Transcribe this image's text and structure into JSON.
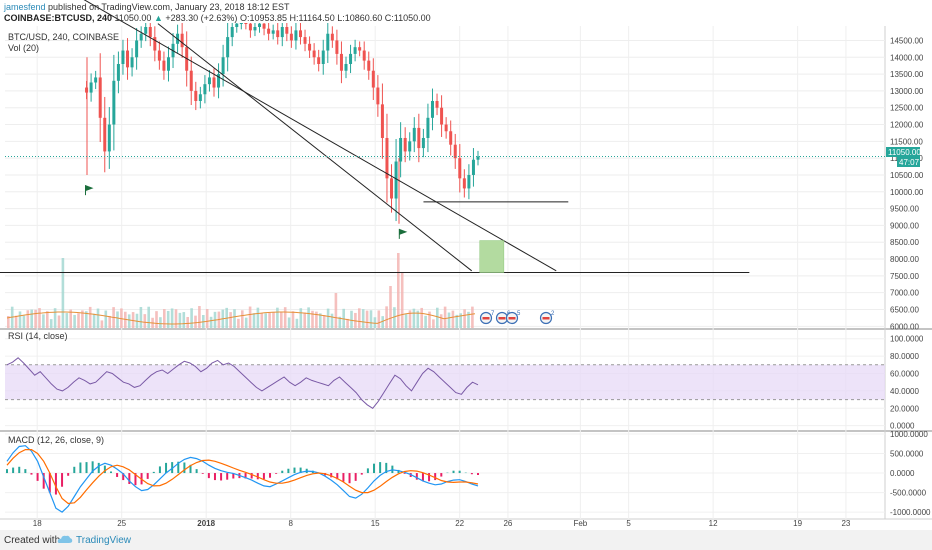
{
  "header": {
    "user": "jamesfend",
    "published": "published on TradingView.com, January 23, 2018 18:12 EST",
    "symbol": "COINBASE:BTCUSD, 240",
    "price": "11050.00",
    "change": "+283.30 (+2.63%)",
    "ohlc": "O:10953.85 H:11164.50 L:10860.60 C:11050.00"
  },
  "footer": {
    "created": "Created with",
    "brand": "TradingView"
  },
  "chart_data": [
    {
      "type": "candlestick",
      "pane": "price",
      "title": "BTC/USD, 240, COINBASE",
      "ylim": [
        5950,
        14900
      ],
      "y_ticks": [
        14500,
        14000,
        13500,
        13000,
        12500,
        12000,
        11500,
        11000,
        10500,
        10000,
        9500,
        9000,
        8500,
        8000,
        7500,
        7000,
        6500,
        6000
      ],
      "x_ticks": [
        "18",
        "25",
        "2018",
        "8",
        "15",
        "22",
        "26",
        "Feb",
        "5",
        "12",
        "19",
        "23"
      ],
      "last_price_label": "11050.00",
      "countdown_label": "47:07",
      "close_path": [
        13100,
        12950,
        13250,
        13400,
        12200,
        11200,
        12000,
        13300,
        13800,
        14200,
        13700,
        14000,
        14500,
        14700,
        14900,
        14600,
        14200,
        13900,
        13600,
        14000,
        14400,
        14700,
        14300,
        13600,
        13000,
        12700,
        12900,
        13200,
        13400,
        13100,
        13500,
        14000,
        14600,
        14900,
        15000,
        15100,
        15000,
        14800,
        14900,
        15000,
        14850,
        14700,
        14800,
        14600,
        14900,
        14700,
        14500,
        14800,
        14600,
        14400,
        14200,
        14000,
        13800,
        14200,
        14700,
        14500,
        14100,
        13600,
        13800,
        14100,
        14300,
        14200,
        13900,
        13600,
        13100,
        12600,
        11600,
        10400,
        9800,
        10900,
        11600,
        11200,
        11500,
        11900,
        11300,
        11600,
        12200,
        12700,
        12500,
        12000,
        11800,
        11400,
        11000,
        10400,
        10100,
        10500,
        10953.85,
        11050
      ],
      "volume": {
        "label": "Vol (20)"
      },
      "annotations": {
        "channel_upper": {
          "from": [
            "2017-12-20",
            16100
          ],
          "to": [
            "2018-01-30",
            7650
          ]
        },
        "channel_lower": {
          "from": [
            "2017-12-28",
            15000
          ],
          "to": [
            "2018-01-23",
            7650
          ]
        },
        "support_long": {
          "from": [
            "2017-12-13",
            7600
          ],
          "to": [
            "2018-02-15",
            7600
          ]
        },
        "support_short": {
          "from": [
            "2018-01-19",
            9700
          ],
          "to": [
            "2018-01-31",
            9700
          ]
        },
        "target_box": {
          "x": [
            "2018-01-23",
            "2018-01-25"
          ],
          "y": [
            7600,
            8550
          ]
        },
        "flags": [
          {
            "date": "2017-12-22",
            "price": 9900
          },
          {
            "date": "2018-01-17",
            "price": 8600
          }
        ],
        "event_badges": [
          "7",
          "6",
          "5",
          "2"
        ]
      }
    },
    {
      "type": "line",
      "pane": "rsi",
      "title": "RSI (14, close)",
      "ylim": [
        -5,
        110
      ],
      "y_ticks": [
        "100.0000",
        "80.0000",
        "60.0000",
        "40.0000",
        "20.0000",
        "0.0000"
      ],
      "band": [
        30,
        70
      ],
      "values": [
        70,
        73,
        78,
        72,
        65,
        58,
        62,
        55,
        48,
        42,
        40,
        44,
        50,
        55,
        52,
        48,
        50,
        56,
        62,
        60,
        55,
        50,
        48,
        44,
        46,
        52,
        58,
        62,
        64,
        60,
        65,
        70,
        74,
        72,
        68,
        62,
        66,
        72,
        75,
        70,
        72,
        68,
        62,
        56,
        50,
        44,
        40,
        44,
        48,
        52,
        56,
        50,
        46,
        50,
        55,
        52,
        50,
        48,
        46,
        52,
        56,
        50,
        44,
        38,
        30,
        24,
        20,
        28,
        38,
        48,
        58,
        54,
        46,
        40,
        50,
        60,
        66,
        62,
        56,
        50,
        44,
        38,
        36,
        44,
        50,
        47
      ]
    },
    {
      "type": "line",
      "pane": "macd",
      "title": "MACD (12, 26, close, 9)",
      "ylim": [
        -1150,
        1050
      ],
      "y_ticks": [
        "1000.0000",
        "500.0000",
        "0.0000",
        "-500.0000",
        "-1000.0000"
      ],
      "macd": [
        300,
        520,
        680,
        700,
        560,
        300,
        -100,
        -500,
        -900,
        -1000,
        -850,
        -600,
        -350,
        -150,
        50,
        180,
        250,
        200,
        100,
        -20,
        -200,
        -350,
        -450,
        -420,
        -300,
        -150,
        0,
        120,
        250,
        350,
        400,
        370,
        300,
        200,
        120,
        60,
        20,
        -10,
        -60,
        -120,
        -180,
        -260,
        -330,
        -350,
        -280,
        -200,
        -120,
        -40,
        20,
        50,
        40,
        0,
        -80,
        -180,
        -300,
        -450,
        -600,
        -640,
        -540,
        -380,
        -200,
        -60,
        40,
        80,
        60,
        20,
        -40,
        -120,
        -200,
        -260,
        -300,
        -280,
        -220,
        -180,
        -170,
        -220,
        -280,
        -330
      ],
      "signal": [
        200,
        380,
        520,
        600,
        600,
        500,
        300,
        0,
        -350,
        -650,
        -780,
        -760,
        -620,
        -430,
        -250,
        -80,
        60,
        160,
        200,
        160,
        80,
        -40,
        -160,
        -270,
        -330,
        -320,
        -260,
        -160,
        -40,
        80,
        190,
        270,
        320,
        330,
        300,
        250,
        190,
        130,
        70,
        20,
        -40,
        -100,
        -170,
        -230,
        -260,
        -260,
        -230,
        -180,
        -120,
        -60,
        -20,
        0,
        -20,
        -70,
        -140,
        -230,
        -340,
        -440,
        -500,
        -500,
        -440,
        -340,
        -220,
        -110,
        -20,
        40,
        60,
        50,
        10,
        -50,
        -120,
        -190,
        -230,
        -240,
        -230,
        -230,
        -250,
        -280
      ]
    }
  ]
}
